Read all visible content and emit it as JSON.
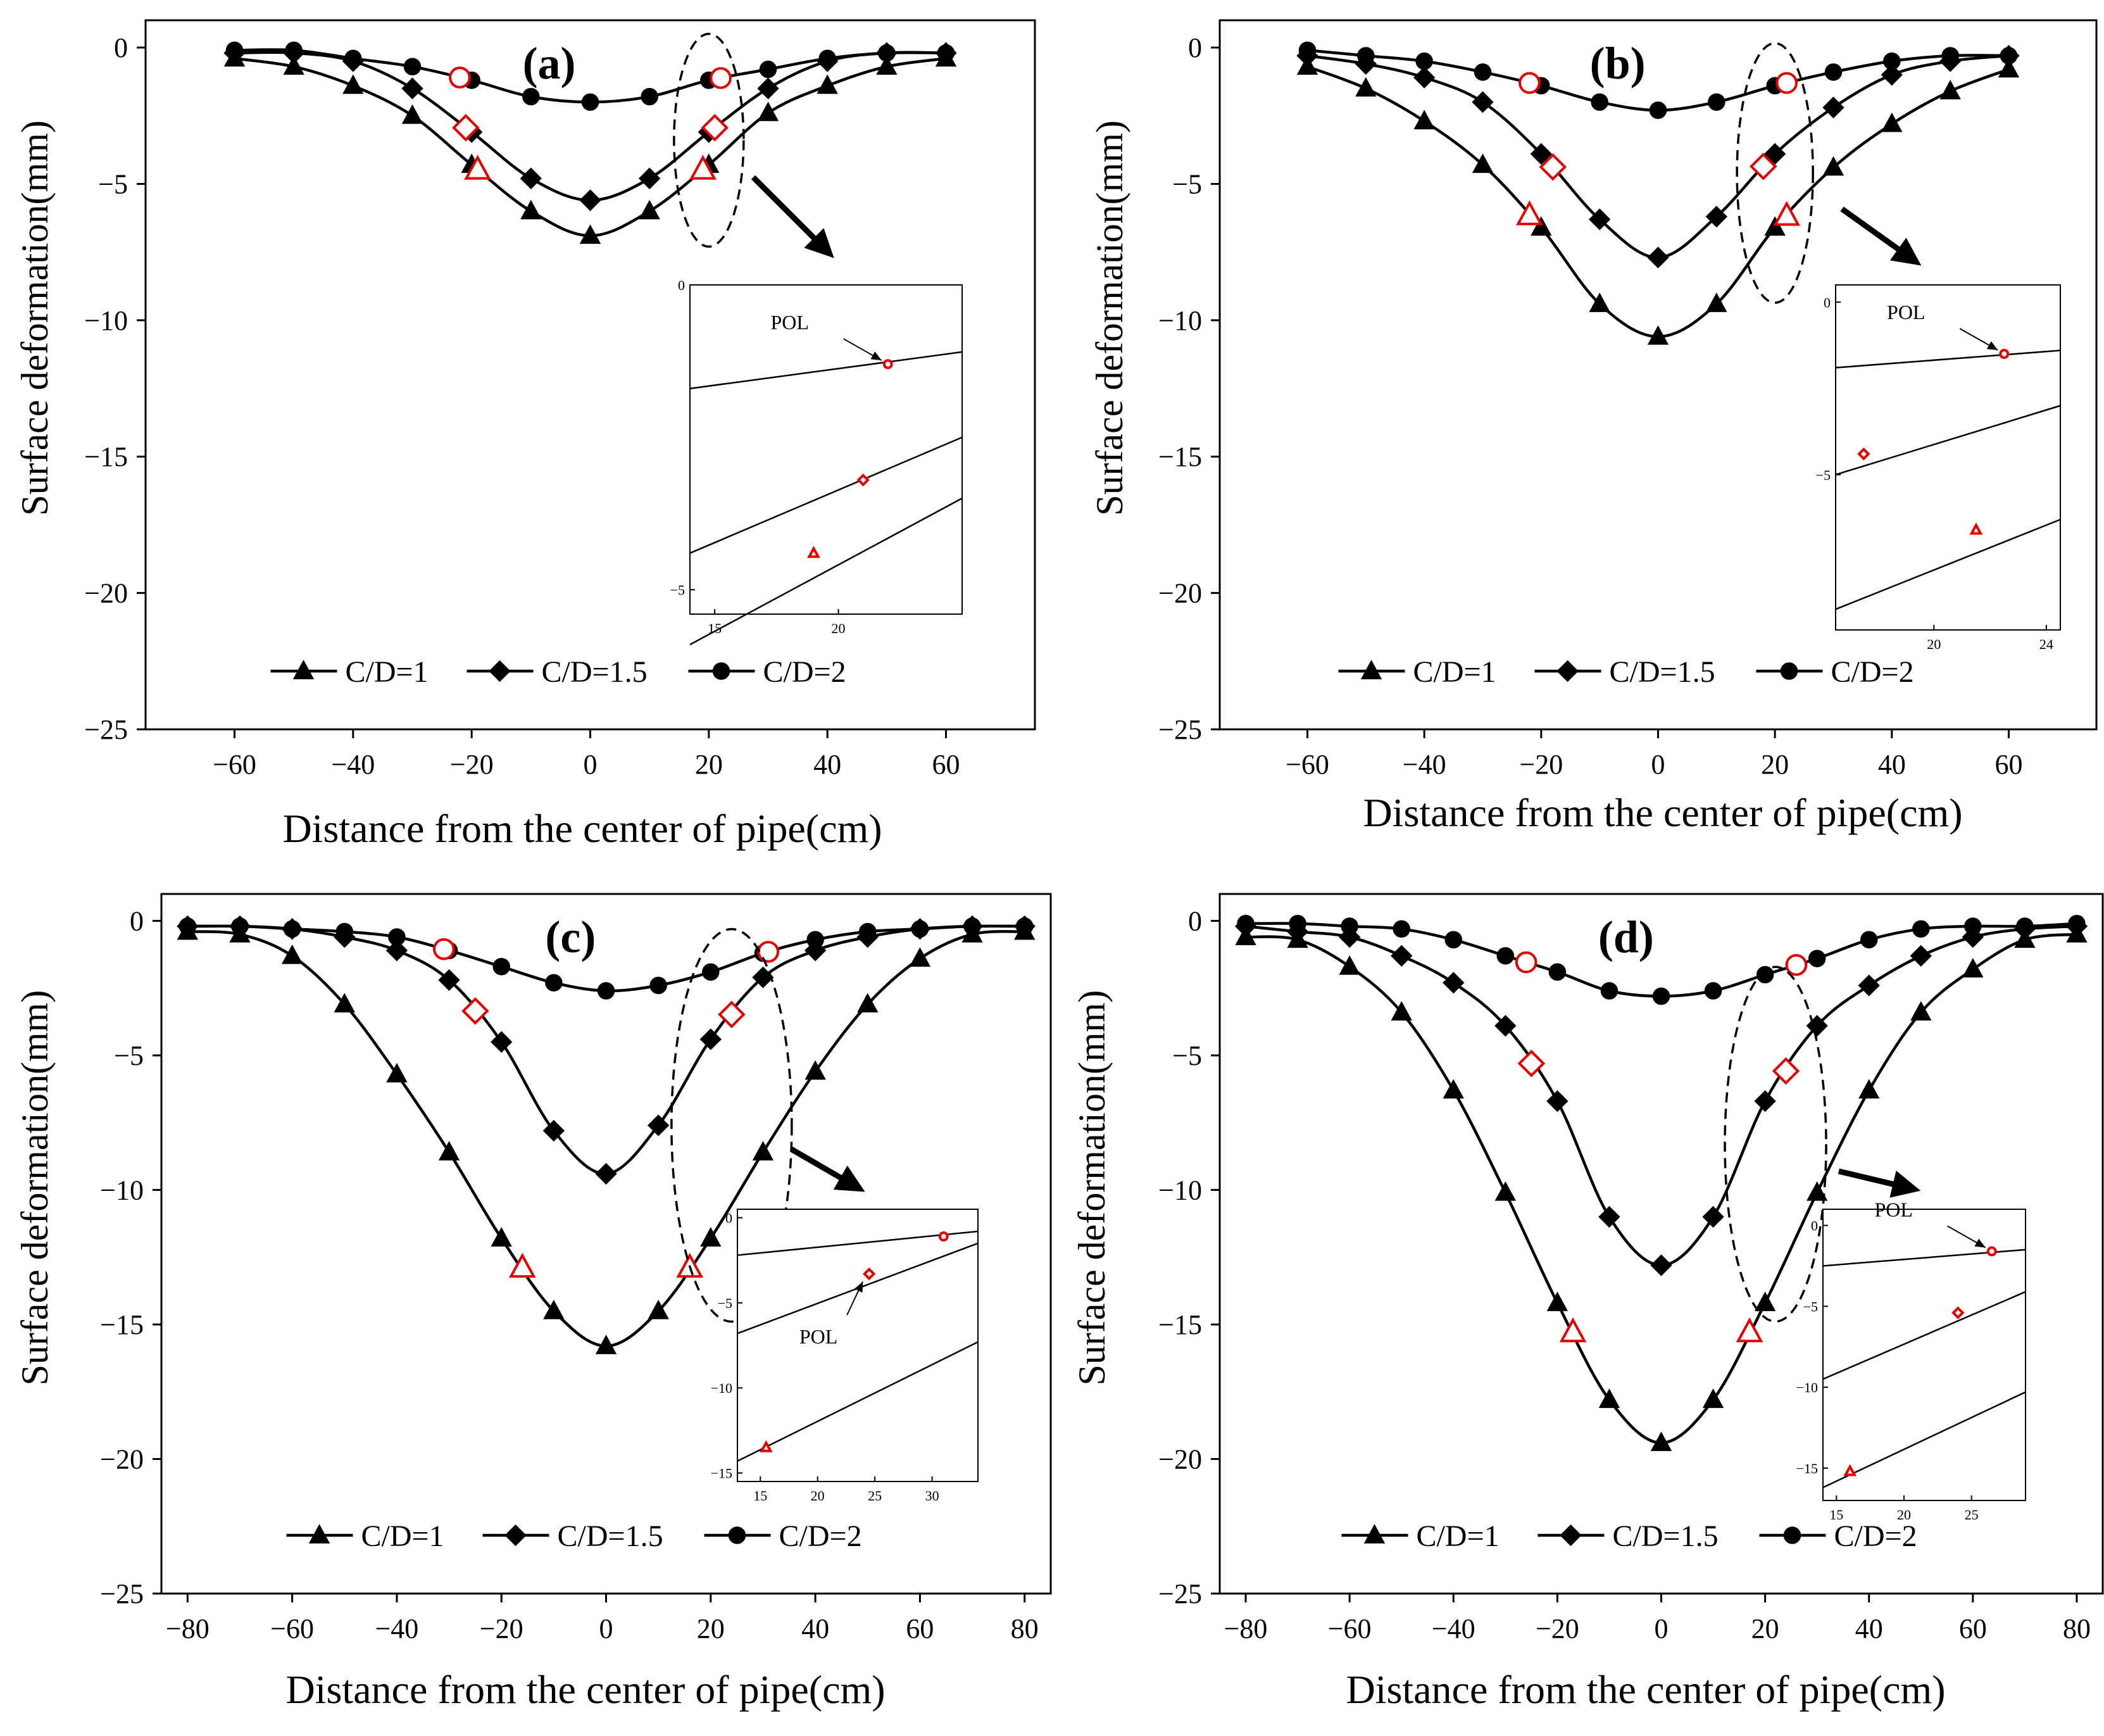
{
  "figure": {
    "background": "#ffffff",
    "line_color": "#000000",
    "marker_highlight_color": "#e60000"
  },
  "chart_data": [
    {
      "id": "a",
      "type": "line",
      "panel_label": "(a)",
      "xlabel": "Distance from the center of pipe(cm)",
      "ylabel": "Surface deformation(mm)",
      "xlim": [
        -75,
        75
      ],
      "ylim": [
        -25,
        1
      ],
      "xticks": [
        -60,
        -40,
        -20,
        0,
        20,
        40,
        60
      ],
      "yticks": [
        0,
        -5,
        -10,
        -15,
        -20,
        -25
      ],
      "legend_position": "bottom-center",
      "series": [
        {
          "name": "C/D=1",
          "marker": "triangle",
          "x": [
            -60,
            -50,
            -40,
            -30,
            -20,
            -10,
            0,
            10,
            20,
            30,
            40,
            50,
            60
          ],
          "y": [
            -0.4,
            -0.7,
            -1.4,
            -2.5,
            -4.3,
            -6.0,
            -6.9,
            -6.0,
            -4.3,
            -2.4,
            -1.4,
            -0.7,
            -0.4
          ],
          "highlight_x": [
            -19,
            19
          ]
        },
        {
          "name": "C/D=1.5",
          "marker": "diamond",
          "x": [
            -60,
            -50,
            -40,
            -30,
            -20,
            -10,
            0,
            10,
            20,
            30,
            40,
            50,
            60
          ],
          "y": [
            -0.2,
            -0.2,
            -0.5,
            -1.5,
            -3.1,
            -4.8,
            -5.6,
            -4.8,
            -3.1,
            -1.5,
            -0.5,
            -0.2,
            -0.2
          ],
          "highlight_x": [
            -21,
            21
          ]
        },
        {
          "name": "C/D=2",
          "marker": "circle",
          "x": [
            -60,
            -50,
            -40,
            -30,
            -20,
            -10,
            0,
            10,
            20,
            30,
            40,
            50,
            60
          ],
          "y": [
            -0.1,
            -0.1,
            -0.4,
            -0.7,
            -1.2,
            -1.8,
            -2.0,
            -1.8,
            -1.2,
            -0.8,
            -0.4,
            -0.2,
            -0.2
          ],
          "highlight_x": [
            -22,
            22
          ]
        }
      ],
      "inset": {
        "annotation": "POL",
        "xlim": [
          14,
          25
        ],
        "ylim": [
          -5.4,
          0
        ],
        "xticks": [
          15,
          20
        ],
        "yticks": [
          0,
          -5
        ],
        "lines": [
          [
            -1.7,
            -1.1
          ],
          [
            -4.4,
            -2.5
          ],
          [
            -5.9,
            -3.5
          ]
        ],
        "markers": [
          {
            "series": "C/D=2",
            "x": 22,
            "y": -1.3
          },
          {
            "series": "C/D=1.5",
            "x": 21,
            "y": -3.2
          },
          {
            "series": "C/D=1",
            "x": 19,
            "y": -4.4
          }
        ]
      }
    },
    {
      "id": "b",
      "type": "line",
      "panel_label": "(b)",
      "xlabel": "Distance from the center of pipe(cm)",
      "ylabel": "Surface deformation(mm)",
      "xlim": [
        -75,
        75
      ],
      "ylim": [
        -25,
        1
      ],
      "xticks": [
        -60,
        -40,
        -20,
        0,
        20,
        40,
        60
      ],
      "yticks": [
        0,
        -5,
        -10,
        -15,
        -20,
        -25
      ],
      "legend_position": "bottom-center",
      "series": [
        {
          "name": "C/D=1",
          "marker": "triangle",
          "x": [
            -60,
            -50,
            -40,
            -30,
            -20,
            -10,
            0,
            10,
            20,
            30,
            40,
            50,
            60
          ],
          "y": [
            -0.7,
            -1.5,
            -2.7,
            -4.3,
            -6.6,
            -9.4,
            -10.6,
            -9.4,
            -6.6,
            -4.4,
            -2.8,
            -1.6,
            -0.8
          ],
          "highlight_x": [
            -22,
            22
          ]
        },
        {
          "name": "C/D=1.5",
          "marker": "diamond",
          "x": [
            -60,
            -50,
            -40,
            -30,
            -20,
            -10,
            0,
            10,
            20,
            30,
            40,
            50,
            60
          ],
          "y": [
            -0.3,
            -0.6,
            -1.1,
            -2.0,
            -3.9,
            -6.3,
            -7.7,
            -6.2,
            -3.9,
            -2.2,
            -1.0,
            -0.5,
            -0.3
          ],
          "highlight_x": [
            -18,
            18
          ]
        },
        {
          "name": "C/D=2",
          "marker": "circle",
          "x": [
            -60,
            -50,
            -40,
            -30,
            -20,
            -10,
            0,
            10,
            20,
            30,
            40,
            50,
            60
          ],
          "y": [
            -0.1,
            -0.3,
            -0.5,
            -0.9,
            -1.4,
            -2.0,
            -2.3,
            -2.0,
            -1.4,
            -0.9,
            -0.5,
            -0.3,
            -0.3
          ],
          "highlight_x": [
            -22,
            22
          ]
        }
      ],
      "inset": {
        "annotation": "POL",
        "xlim": [
          16.5,
          24.5
        ],
        "ylim": [
          -9.5,
          0.5
        ],
        "xticks": [
          20,
          24
        ],
        "yticks": [
          0,
          -5
        ],
        "lines": [
          [
            -1.9,
            -1.4
          ],
          [
            -5.0,
            -3.0
          ],
          [
            -8.9,
            -6.3
          ]
        ],
        "markers": [
          {
            "series": "C/D=2",
            "x": 22.5,
            "y": -1.5
          },
          {
            "series": "C/D=1.5",
            "x": 17.5,
            "y": -4.4
          },
          {
            "series": "C/D=1",
            "x": 21.5,
            "y": -6.6
          }
        ]
      }
    },
    {
      "id": "c",
      "type": "line",
      "panel_label": "(c)",
      "xlabel": "Distance from the center of pipe(cm)",
      "ylabel": "Surface deformation(mm)",
      "xlim": [
        -85,
        85
      ],
      "ylim": [
        -25,
        1
      ],
      "xticks": [
        -80,
        -60,
        -40,
        -20,
        0,
        20,
        40,
        60,
        80
      ],
      "yticks": [
        0,
        -5,
        -10,
        -15,
        -20,
        -25
      ],
      "legend_position": "bottom-center",
      "series": [
        {
          "name": "C/D=1",
          "marker": "triangle",
          "x": [
            -80,
            -70,
            -60,
            -50,
            -40,
            -30,
            -20,
            -10,
            0,
            10,
            20,
            30,
            40,
            50,
            60,
            70,
            80
          ],
          "y": [
            -0.4,
            -0.5,
            -1.3,
            -3.1,
            -5.7,
            -8.6,
            -11.8,
            -14.5,
            -15.8,
            -14.5,
            -11.8,
            -8.6,
            -5.6,
            -3.1,
            -1.4,
            -0.5,
            -0.4
          ],
          "highlight_x": [
            -16,
            16
          ]
        },
        {
          "name": "C/D=1.5",
          "marker": "diamond",
          "x": [
            -80,
            -70,
            -60,
            -50,
            -40,
            -30,
            -20,
            -10,
            0,
            10,
            20,
            30,
            40,
            50,
            60,
            70,
            80
          ],
          "y": [
            -0.2,
            -0.2,
            -0.3,
            -0.6,
            -1.1,
            -2.2,
            -4.5,
            -7.8,
            -9.4,
            -7.6,
            -4.4,
            -2.1,
            -1.1,
            -0.6,
            -0.3,
            -0.2,
            -0.2
          ],
          "highlight_x": [
            -25,
            24
          ]
        },
        {
          "name": "C/D=2",
          "marker": "circle",
          "x": [
            -80,
            -70,
            -60,
            -50,
            -40,
            -30,
            -20,
            -10,
            0,
            10,
            20,
            30,
            40,
            50,
            60,
            70,
            80
          ],
          "y": [
            -0.2,
            -0.2,
            -0.3,
            -0.4,
            -0.6,
            -1.1,
            -1.7,
            -2.3,
            -2.6,
            -2.4,
            -1.9,
            -1.2,
            -0.7,
            -0.4,
            -0.3,
            -0.2,
            -0.2
          ],
          "highlight_x": [
            -31,
            31
          ]
        }
      ],
      "inset": {
        "annotation": "POL",
        "xlim": [
          13,
          34
        ],
        "ylim": [
          -15.5,
          0.5
        ],
        "xticks": [
          15,
          20,
          25,
          30
        ],
        "yticks": [
          0,
          -5,
          -10,
          -15
        ],
        "lines": [
          [
            -2.2,
            -0.8
          ],
          [
            -6.8,
            -1.5
          ],
          [
            -14.3,
            -7.3
          ]
        ],
        "markers": [
          {
            "series": "C/D=2",
            "x": 31,
            "y": -1.1
          },
          {
            "series": "C/D=1.5",
            "x": 24.5,
            "y": -3.3
          },
          {
            "series": "C/D=1",
            "x": 15.5,
            "y": -13.5
          }
        ]
      }
    },
    {
      "id": "d",
      "type": "line",
      "panel_label": "(d)",
      "xlabel": "Distance from the center of pipe(cm)",
      "ylabel": "Surface deformation(mm)",
      "xlim": [
        -85,
        85
      ],
      "ylim": [
        -25,
        1
      ],
      "xticks": [
        -80,
        -60,
        -40,
        -20,
        0,
        20,
        40,
        60,
        80
      ],
      "yticks": [
        0,
        -5,
        -10,
        -15,
        -20,
        -25
      ],
      "legend_position": "bottom-center",
      "series": [
        {
          "name": "C/D=1",
          "marker": "triangle",
          "x": [
            -80,
            -70,
            -60,
            -50,
            -40,
            -30,
            -20,
            -10,
            0,
            10,
            20,
            30,
            40,
            50,
            60,
            70,
            80
          ],
          "y": [
            -0.6,
            -0.7,
            -1.7,
            -3.4,
            -6.3,
            -10.1,
            -14.2,
            -17.8,
            -19.4,
            -17.8,
            -14.2,
            -10.1,
            -6.3,
            -3.4,
            -1.8,
            -0.7,
            -0.5
          ],
          "highlight_x": [
            -17,
            17
          ]
        },
        {
          "name": "C/D=1.5",
          "marker": "diamond",
          "x": [
            -80,
            -70,
            -60,
            -50,
            -40,
            -30,
            -20,
            -10,
            0,
            10,
            20,
            30,
            40,
            50,
            60,
            70,
            80
          ],
          "y": [
            -0.2,
            -0.4,
            -0.6,
            -1.3,
            -2.3,
            -3.9,
            -6.7,
            -11.0,
            -12.8,
            -11.0,
            -6.7,
            -3.9,
            -2.4,
            -1.3,
            -0.6,
            -0.3,
            -0.2
          ],
          "highlight_x": [
            -25,
            24
          ]
        },
        {
          "name": "C/D=2",
          "marker": "circle",
          "x": [
            -80,
            -70,
            -60,
            -50,
            -40,
            -30,
            -20,
            -10,
            0,
            10,
            20,
            30,
            40,
            50,
            60,
            70,
            80
          ],
          "y": [
            -0.1,
            -0.1,
            -0.2,
            -0.3,
            -0.7,
            -1.3,
            -1.9,
            -2.6,
            -2.8,
            -2.6,
            -2.0,
            -1.4,
            -0.7,
            -0.3,
            -0.2,
            -0.2,
            -0.1
          ],
          "highlight_x": [
            -26,
            26
          ]
        }
      ],
      "inset": {
        "annotation": "POL",
        "xlim": [
          14,
          29
        ],
        "ylim": [
          -17,
          1
        ],
        "xticks": [
          15,
          20,
          25
        ],
        "yticks": [
          0,
          -5,
          -10,
          -15
        ],
        "lines": [
          [
            -2.5,
            -1.5
          ],
          [
            -9.5,
            -4.1
          ],
          [
            -16.2,
            -10.3
          ]
        ],
        "markers": [
          {
            "series": "C/D=2",
            "x": 26.5,
            "y": -1.6
          },
          {
            "series": "C/D=1.5",
            "x": 24,
            "y": -5.4
          },
          {
            "series": "C/D=1",
            "x": 16,
            "y": -15.2
          }
        ]
      }
    }
  ]
}
